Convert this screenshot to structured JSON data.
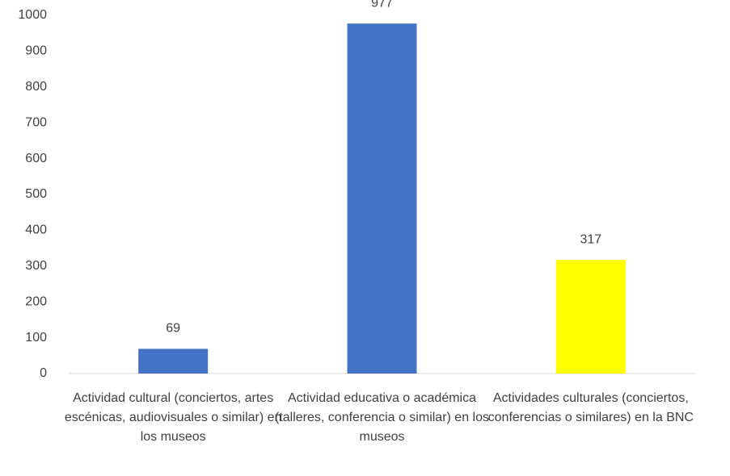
{
  "chart_data": {
    "type": "bar",
    "categories": [
      "Actividad cultural (conciertos, artes escénicas, audiovisuales o similar) en los museos",
      "Actividad educativa o académica (talleres, conferencia o similar) en los museos",
      "Actividades culturales (conciertos, conferencias o similares) en la BNC"
    ],
    "values": [
      69,
      977,
      317
    ],
    "colors": [
      "#4472c4",
      "#4472c4",
      "#ffff00"
    ],
    "ylim": [
      0,
      1000
    ],
    "yticks": [
      0,
      100,
      200,
      300,
      400,
      500,
      600,
      700,
      800,
      900,
      1000
    ],
    "grid": false
  }
}
